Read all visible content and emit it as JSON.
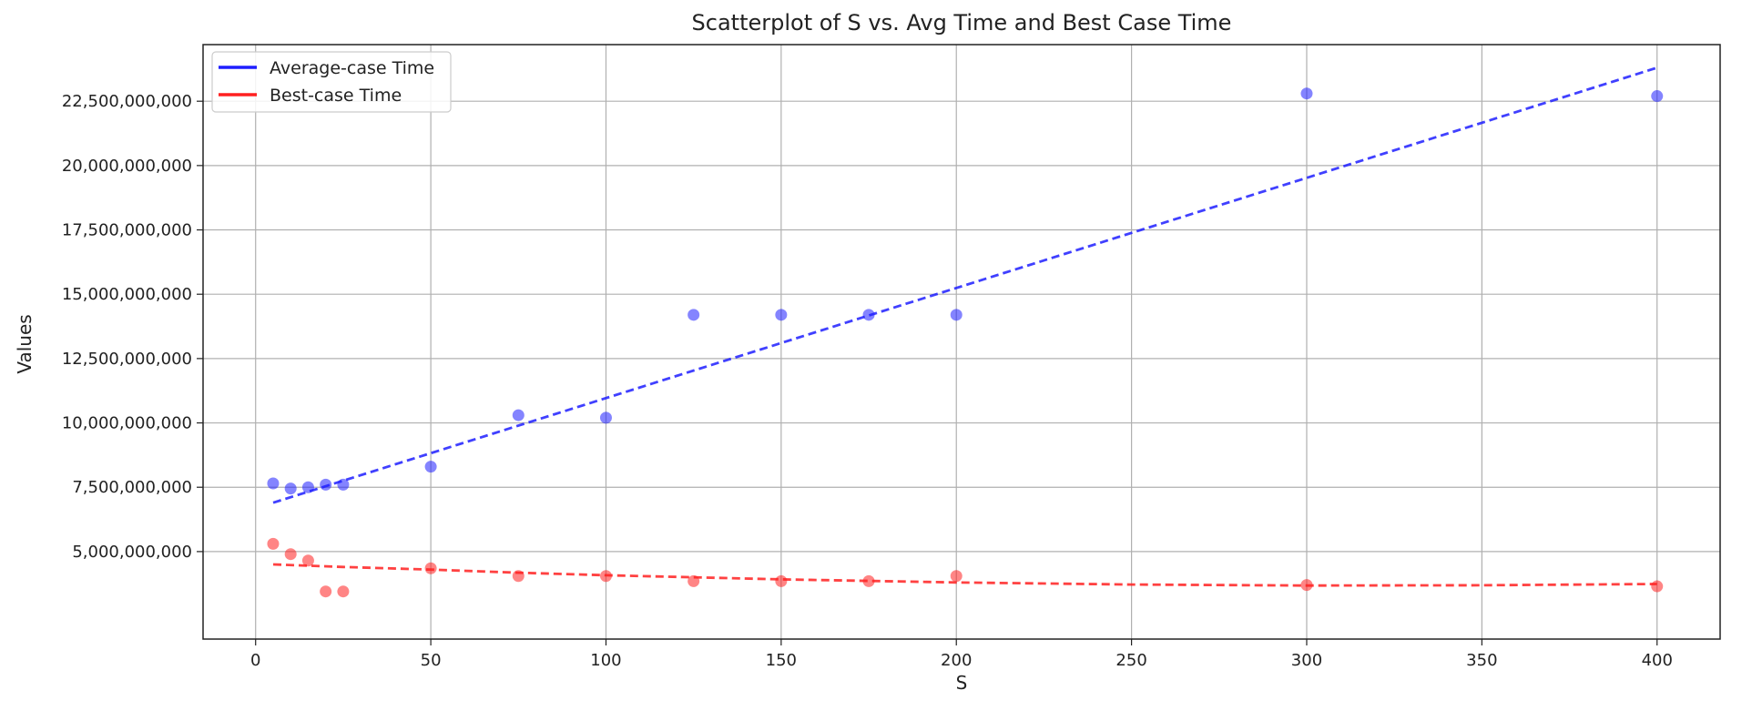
{
  "chart_data": {
    "type": "scatter",
    "title": "Scatterplot of S vs. Avg Time and Best Case Time",
    "xlabel": "S",
    "ylabel": "Values",
    "xlim": [
      -15,
      418
    ],
    "ylim": [
      1600000000,
      24700000000
    ],
    "xticks": [
      0,
      50,
      100,
      150,
      200,
      250,
      300,
      350,
      400
    ],
    "xtick_labels": [
      "0",
      "50",
      "100",
      "150",
      "200",
      "250",
      "300",
      "350",
      "400"
    ],
    "yticks": [
      5000000000,
      7500000000,
      10000000000,
      12500000000,
      15000000000,
      17500000000,
      20000000000,
      22500000000
    ],
    "ytick_labels": [
      "5,000,000,000",
      "7,500,000,000",
      "10,000,000,000",
      "12,500,000,000",
      "15,000,000,000",
      "17,500,000,000",
      "20,000,000,000",
      "22,500,000,000"
    ],
    "grid": true,
    "legend_position": "top-left",
    "series": [
      {
        "name": "Average-case Time",
        "color": "#1f1fff",
        "x": [
          5,
          10,
          15,
          20,
          25,
          50,
          75,
          100,
          125,
          150,
          175,
          200,
          300,
          400
        ],
        "y": [
          7650000000,
          7450000000,
          7500000000,
          7600000000,
          7600000000,
          8300000000,
          10300000000,
          10200000000,
          14200000000,
          14200000000,
          14200000000,
          14200000000,
          22800000000,
          22700000000
        ],
        "trend": {
          "x": [
            5,
            400
          ],
          "y": [
            6900000000,
            23800000000
          ]
        }
      },
      {
        "name": "Best-case Time",
        "color": "#ff2020",
        "x": [
          5,
          10,
          15,
          20,
          25,
          50,
          75,
          100,
          125,
          150,
          175,
          200,
          300,
          400
        ],
        "y": [
          5300000000,
          4900000000,
          4650000000,
          3450000000,
          3450000000,
          4350000000,
          4050000000,
          4050000000,
          3850000000,
          3850000000,
          3850000000,
          4050000000,
          3700000000,
          3650000000
        ],
        "trend": {
          "x": [
            5,
            25,
            50,
            75,
            100,
            150,
            200,
            250,
            300,
            350,
            400
          ],
          "y": [
            4500000000,
            4400000000,
            4300000000,
            4180000000,
            4080000000,
            3920000000,
            3800000000,
            3720000000,
            3680000000,
            3690000000,
            3740000000
          ]
        }
      }
    ]
  }
}
